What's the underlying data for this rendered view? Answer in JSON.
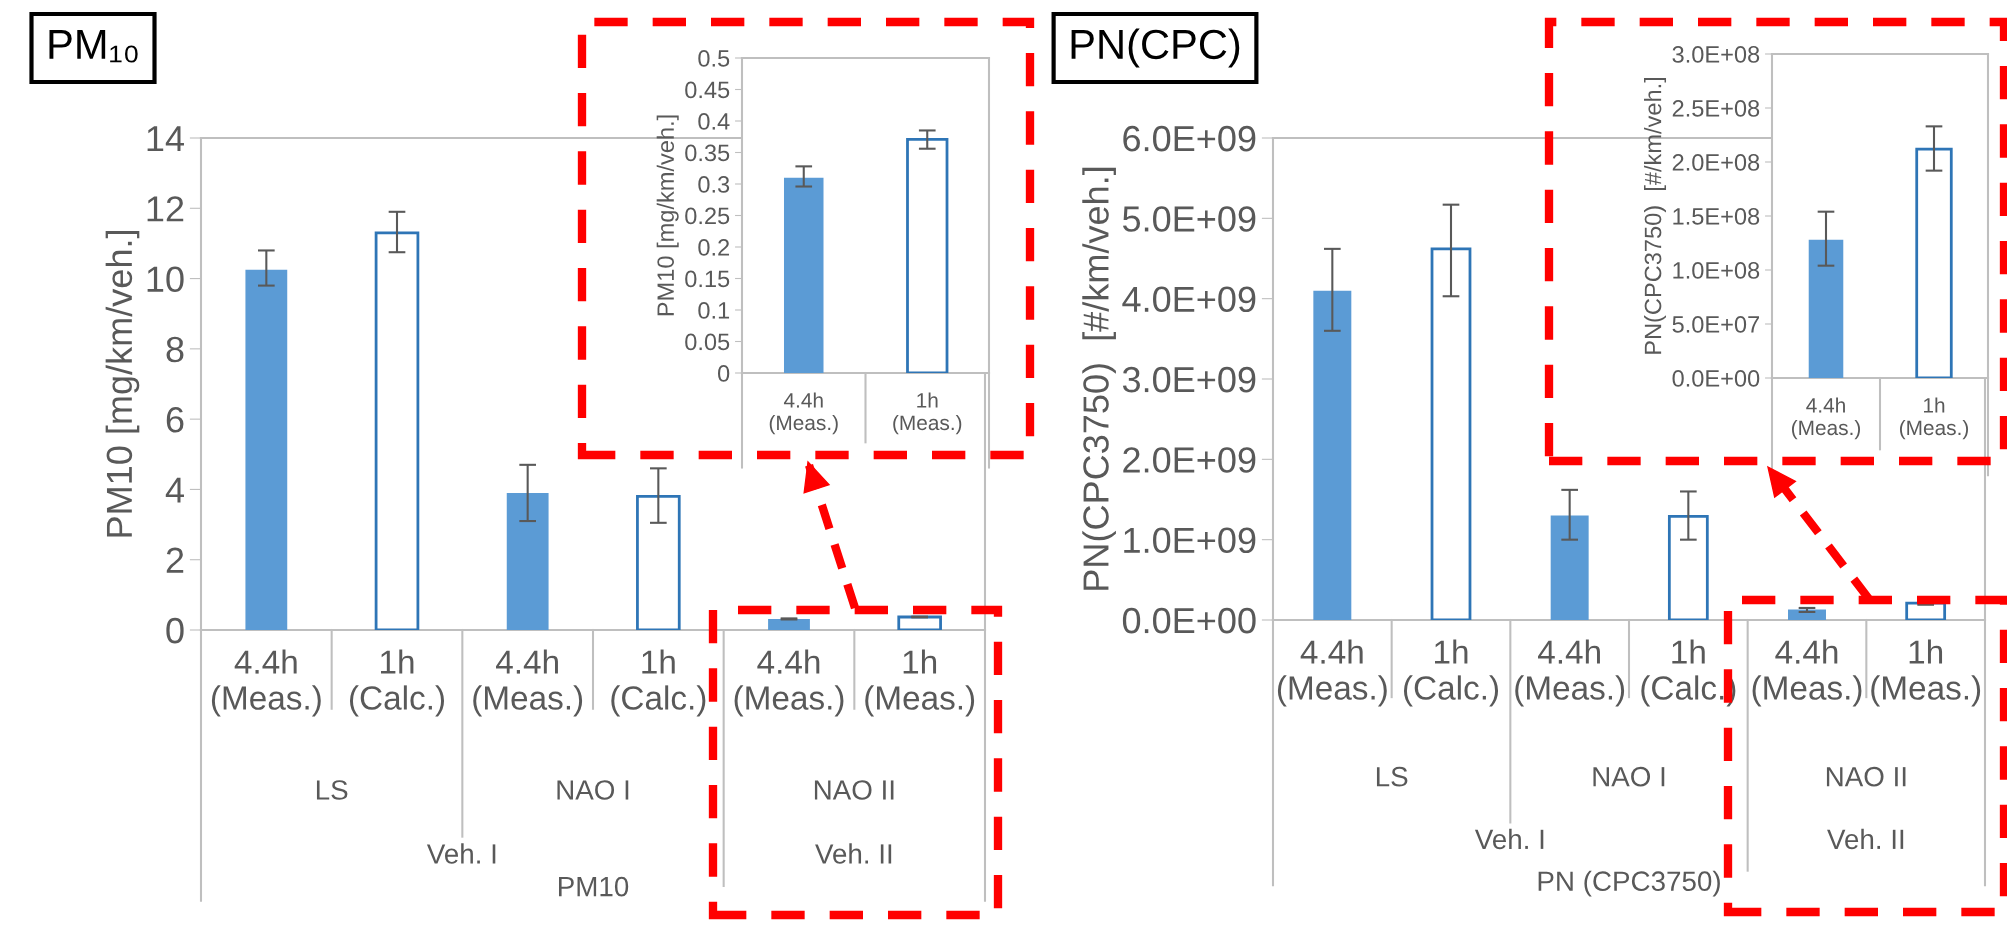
{
  "chart_data": [
    {
      "type": "bar",
      "title": "PM₁₀",
      "ylabel": "PM10 [mg/km/veh.]",
      "xlabel": "PM10",
      "categories": [
        "4.4h\n(Meas.)",
        "1h\n(Calc.)",
        "4.4h\n(Meas.)",
        "1h\n(Calc.)",
        "4.4h\n(Meas.)",
        "1h\n(Meas.)"
      ],
      "values": [
        10.25,
        11.3,
        3.9,
        3.8,
        0.31,
        0.37
      ],
      "colors": [
        "#5b9bd5",
        "#ffffff",
        "#5b9bd5",
        "#ffffff",
        "#5b9bd5",
        "#ffffff"
      ],
      "errors": [
        [
          9.8,
          10.8
        ],
        [
          10.75,
          11.9
        ],
        [
          3.1,
          4.7
        ],
        [
          3.05,
          4.6
        ],
        [
          0.3,
          0.33
        ],
        [
          0.36,
          0.38
        ]
      ],
      "annotations": [
        "LS",
        "NAO I",
        "NAO II",
        "Veh. I",
        "Veh. II"
      ],
      "ylim": [
        0,
        14
      ],
      "yticks": [
        0,
        2,
        4,
        6,
        8,
        10,
        12,
        14
      ],
      "grid": false,
      "legend": false
    },
    {
      "type": "bar",
      "ylabel": "PM10 [mg/km/veh.]",
      "categories": [
        "4.4h\n(Meas.)",
        "1h\n(Meas.)"
      ],
      "values": [
        0.31,
        0.371
      ],
      "colors": [
        "#5b9bd5",
        "#ffffff"
      ],
      "errors": [
        [
          0.296,
          0.328
        ],
        [
          0.356,
          0.385
        ]
      ],
      "ylim": [
        0,
        0.5
      ],
      "yticks": [
        0,
        0.05,
        0.1,
        0.15,
        0.2,
        0.25,
        0.3,
        0.35,
        0.4,
        0.45,
        0.5
      ],
      "grid": false,
      "legend": false
    },
    {
      "type": "bar",
      "title": "PN(CPC)",
      "ylabel": "PN(CPC3750)  [#/km/veh.]",
      "xlabel": "PN (CPC3750)",
      "categories": [
        "4.4h\n(Meas.)",
        "1h\n(Calc.)",
        "4.4h\n(Meas.)",
        "1h\n(Calc.)",
        "4.4h\n(Meas.)",
        "1h\n(Meas.)"
      ],
      "values": [
        4100000000.0,
        4620000000.0,
        1300000000.0,
        1290000000.0,
        130000000.0,
        210000000.0
      ],
      "colors": [
        "#5b9bd5",
        "#ffffff",
        "#5b9bd5",
        "#ffffff",
        "#5b9bd5",
        "#ffffff"
      ],
      "errors": [
        [
          3600000000.0,
          4620000000.0
        ],
        [
          4030000000.0,
          5170000000.0
        ],
        [
          1000000000.0,
          1620000000.0
        ],
        [
          1000000000.0,
          1600000000.0
        ],
        [
          100000000.0,
          150000000.0
        ],
        [
          190000000.0,
          230000000.0
        ]
      ],
      "annotations": [
        "LS",
        "NAO I",
        "NAO II",
        "Veh. I",
        "Veh. II"
      ],
      "ylim": [
        0,
        6000000000.0
      ],
      "yticks": [
        {
          "value": 0,
          "label": "0.0E+00"
        },
        {
          "value": 1000000000.0,
          "label": "1.0E+09"
        },
        {
          "value": 2000000000.0,
          "label": "2.0E+09"
        },
        {
          "value": 3000000000.0,
          "label": "3.0E+09"
        },
        {
          "value": 4000000000.0,
          "label": "4.0E+09"
        },
        {
          "value": 5000000000.0,
          "label": "5.0E+09"
        },
        {
          "value": 6000000000.0,
          "label": "6.0E+09"
        }
      ],
      "grid": false,
      "legend": false
    },
    {
      "type": "bar",
      "ylabel": "PN(CPC3750)  [#/km/veh.]",
      "categories": [
        "4.4h\n(Meas.)",
        "1h\n(Meas.)"
      ],
      "values": [
        128000000.0,
        212000000.0
      ],
      "colors": [
        "#5b9bd5",
        "#ffffff"
      ],
      "errors": [
        [
          104000000.0,
          154000000.0
        ],
        [
          192000000.0,
          233000000.0
        ]
      ],
      "ylim": [
        0,
        300000000.0
      ],
      "yticks": [
        {
          "value": 0,
          "label": "0.0E+00"
        },
        {
          "value": 50000000.0,
          "label": "5.0E+07"
        },
        {
          "value": 100000000.0,
          "label": "1.0E+08"
        },
        {
          "value": 150000000.0,
          "label": "1.5E+08"
        },
        {
          "value": 200000000.0,
          "label": "2.0E+08"
        },
        {
          "value": 250000000.0,
          "label": "2.5E+08"
        },
        {
          "value": 300000000.0,
          "label": "3.0E+08"
        }
      ],
      "grid": false,
      "legend": false
    }
  ]
}
